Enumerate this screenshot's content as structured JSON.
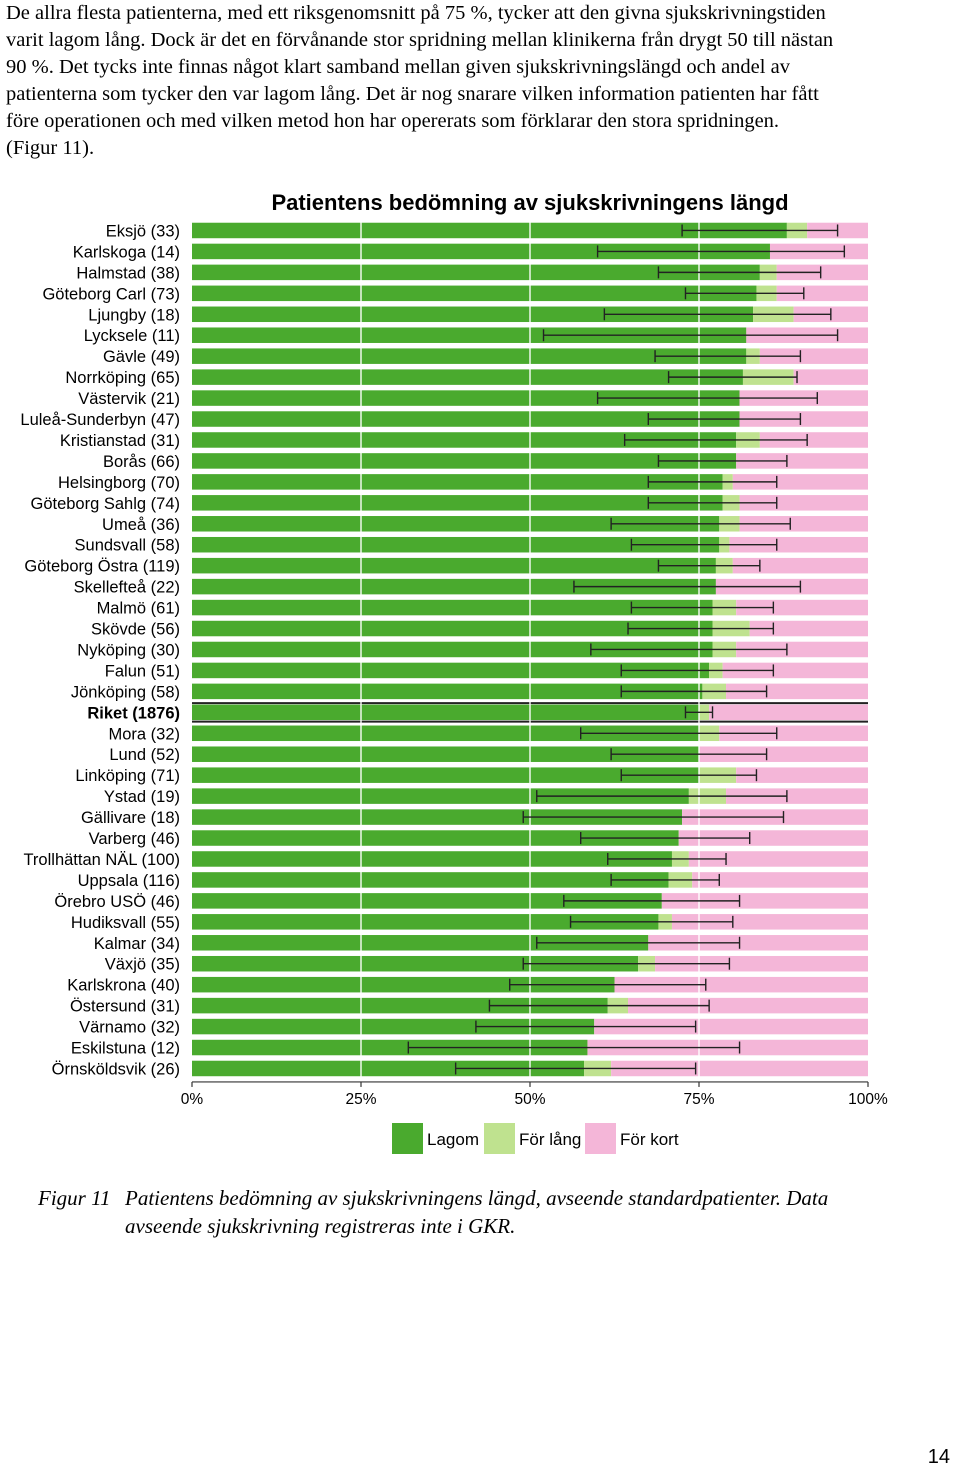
{
  "body_text": [
    "De allra flesta patienterna, med ett riksgenomsnitt på 75 %, tycker att den givna sjukskrivningstiden",
    "varit lagom lång. Dock är det en förvånande stor spridning mellan klinikerna från drygt 50 till nästan",
    "90 %. Det tycks inte finnas något klart samband mellan given sjukskrivningslängd och andel av",
    "patienterna som tycker den var lagom lång. Det är nog snarare vilken information patienten har fått",
    "före operationen och med vilken metod hon har opererats som förklarar den stora spridningen.",
    "(Figur 11)."
  ],
  "caption": {
    "label": "Figur 11",
    "lines": [
      "Patientens bedömning av sjukskrivningens längd, avseende standardpatienter. Data",
      "avseende sjukskrivning registreras inte i GKR."
    ]
  },
  "page_number": "14",
  "colors": {
    "lagom": "#4aaa2e",
    "for_lang": "#bfe28f",
    "for_kort": "#f4b6d8",
    "errorbar": "#222222"
  },
  "chart_data": {
    "type": "bar",
    "orientation": "horizontal",
    "stacked": true,
    "title": "Patientens bedömning av sjukskrivningens längd",
    "xlabel": "",
    "ylabel": "",
    "xlim": [
      0,
      100
    ],
    "xticks": [
      "0%",
      "25%",
      "50%",
      "75%",
      "100%"
    ],
    "grid": "vertical at 25% intervals",
    "legend_position": "bottom",
    "series": [
      {
        "name": "Lagom",
        "key": "lagom"
      },
      {
        "name": "För lång",
        "key": "for_lang"
      },
      {
        "name": "För kort",
        "key": "for_kort"
      }
    ],
    "highlight_category": "Riket (1876)",
    "rows": [
      {
        "label": "Eksjö (33)",
        "lagom": 88,
        "for_lang": 3,
        "ci": [
          72.5,
          95.5
        ]
      },
      {
        "label": "Karlskoga (14)",
        "lagom": 85.5,
        "for_lang": 0,
        "ci": [
          60,
          96.5
        ]
      },
      {
        "label": "Halmstad (38)",
        "lagom": 84,
        "for_lang": 2.5,
        "ci": [
          69,
          93
        ]
      },
      {
        "label": "Göteborg Carl (73)",
        "lagom": 83.5,
        "for_lang": 3,
        "ci": [
          73,
          90.5
        ]
      },
      {
        "label": "Ljungby (18)",
        "lagom": 83,
        "for_lang": 6,
        "ci": [
          61,
          94.5
        ]
      },
      {
        "label": "Lycksele (11)",
        "lagom": 82,
        "for_lang": 0,
        "ci": [
          52,
          95.5
        ]
      },
      {
        "label": "Gävle (49)",
        "lagom": 82,
        "for_lang": 2,
        "ci": [
          68.5,
          90
        ]
      },
      {
        "label": "Norrköping (65)",
        "lagom": 81.5,
        "for_lang": 7.5,
        "ci": [
          70.5,
          89.5
        ]
      },
      {
        "label": "Västervik (21)",
        "lagom": 81,
        "for_lang": 0,
        "ci": [
          60,
          92.5
        ]
      },
      {
        "label": "Luleå-Sunderbyn (47)",
        "lagom": 81,
        "for_lang": 0,
        "ci": [
          67.5,
          90
        ]
      },
      {
        "label": "Kristianstad (31)",
        "lagom": 80.5,
        "for_lang": 3.5,
        "ci": [
          64,
          91
        ]
      },
      {
        "label": "Borås (66)",
        "lagom": 80.5,
        "for_lang": 0,
        "ci": [
          69,
          88
        ]
      },
      {
        "label": "Helsingborg (70)",
        "lagom": 78.5,
        "for_lang": 1.5,
        "ci": [
          67.5,
          86.5
        ]
      },
      {
        "label": "Göteborg Sahlg (74)",
        "lagom": 78.5,
        "for_lang": 2.5,
        "ci": [
          67.5,
          86.5
        ]
      },
      {
        "label": "Umeå (36)",
        "lagom": 78,
        "for_lang": 3,
        "ci": [
          62,
          88.5
        ]
      },
      {
        "label": "Sundsvall (58)",
        "lagom": 78,
        "for_lang": 1.5,
        "ci": [
          65,
          86.5
        ]
      },
      {
        "label": "Göteborg Östra (119)",
        "lagom": 77.5,
        "for_lang": 2.5,
        "ci": [
          69,
          84
        ]
      },
      {
        "label": "Skellefteå (22)",
        "lagom": 77.5,
        "for_lang": 0,
        "ci": [
          56.5,
          90
        ]
      },
      {
        "label": "Malmö (61)",
        "lagom": 77,
        "for_lang": 3.5,
        "ci": [
          65,
          86
        ]
      },
      {
        "label": "Skövde (56)",
        "lagom": 77,
        "for_lang": 5.5,
        "ci": [
          64.5,
          86
        ]
      },
      {
        "label": "Nyköping (30)",
        "lagom": 77,
        "for_lang": 3.5,
        "ci": [
          59,
          88
        ]
      },
      {
        "label": "Falun (51)",
        "lagom": 76.5,
        "for_lang": 2,
        "ci": [
          63.5,
          86
        ]
      },
      {
        "label": "Jönköping (58)",
        "lagom": 75.5,
        "for_lang": 3.5,
        "ci": [
          63.5,
          85
        ]
      },
      {
        "label": "Riket (1876)",
        "lagom": 75,
        "for_lang": 1.5,
        "ci": [
          73,
          77
        ]
      },
      {
        "label": "Mora (32)",
        "lagom": 75,
        "for_lang": 3,
        "ci": [
          57.5,
          86.5
        ]
      },
      {
        "label": "Lund (52)",
        "lagom": 75,
        "for_lang": 0,
        "ci": [
          62,
          85
        ]
      },
      {
        "label": "Linköping (71)",
        "lagom": 75,
        "for_lang": 5.5,
        "ci": [
          63.5,
          83.5
        ]
      },
      {
        "label": "Ystad (19)",
        "lagom": 73.5,
        "for_lang": 5.5,
        "ci": [
          51,
          88
        ]
      },
      {
        "label": "Gällivare (18)",
        "lagom": 72.5,
        "for_lang": 0,
        "ci": [
          49,
          87.5
        ]
      },
      {
        "label": "Varberg (46)",
        "lagom": 72,
        "for_lang": 0,
        "ci": [
          57.5,
          82.5
        ]
      },
      {
        "label": "Trollhättan NÄL (100)",
        "lagom": 71,
        "for_lang": 2.5,
        "ci": [
          61.5,
          79
        ]
      },
      {
        "label": "Uppsala (116)",
        "lagom": 70.5,
        "for_lang": 3.5,
        "ci": [
          62,
          78
        ]
      },
      {
        "label": "Örebro USÖ (46)",
        "lagom": 69.5,
        "for_lang": 0,
        "ci": [
          55,
          81
        ]
      },
      {
        "label": "Hudiksvall (55)",
        "lagom": 69,
        "for_lang": 2,
        "ci": [
          56,
          80
        ]
      },
      {
        "label": "Kalmar (34)",
        "lagom": 67.5,
        "for_lang": 0,
        "ci": [
          51,
          81
        ]
      },
      {
        "label": "Växjö (35)",
        "lagom": 66,
        "for_lang": 2.5,
        "ci": [
          49,
          79.5
        ]
      },
      {
        "label": "Karlskrona (40)",
        "lagom": 62.5,
        "for_lang": 0,
        "ci": [
          47,
          76
        ]
      },
      {
        "label": "Östersund (31)",
        "lagom": 61.5,
        "for_lang": 3,
        "ci": [
          44,
          76.5
        ]
      },
      {
        "label": "Värnamo (32)",
        "lagom": 59.5,
        "for_lang": 0,
        "ci": [
          42,
          74.5
        ]
      },
      {
        "label": "Eskilstuna (12)",
        "lagom": 58.5,
        "for_lang": 0,
        "ci": [
          32,
          81
        ]
      },
      {
        "label": "Örnsköldsvik (26)",
        "lagom": 58,
        "for_lang": 4,
        "ci": [
          39,
          74.5
        ]
      }
    ]
  }
}
